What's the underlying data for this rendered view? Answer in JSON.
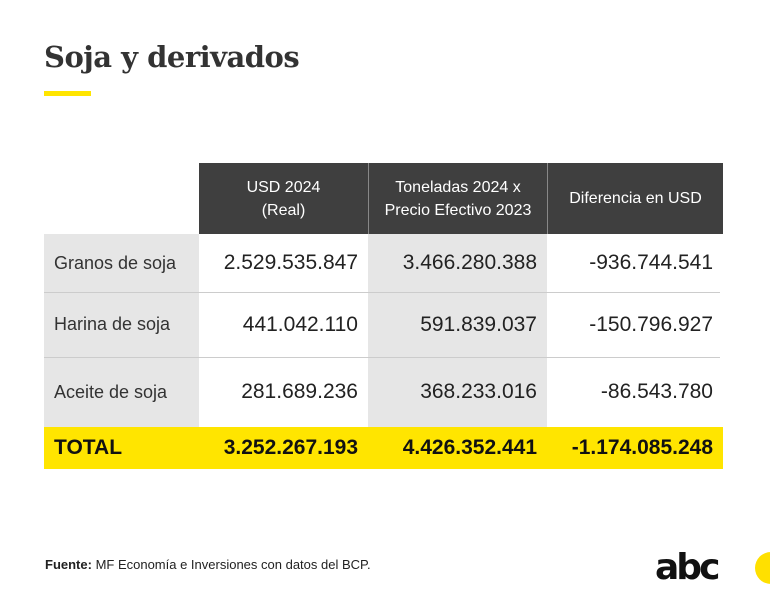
{
  "title": "Soja y derivados",
  "table": {
    "headers": [
      "USD 2024\n(Real)",
      "Toneladas 2024 x\nPrecio Efectivo 2023",
      "Diferencia en USD"
    ],
    "rows": [
      {
        "label": "Granos de soja",
        "values": [
          "2.529.535.847",
          "3.466.280.388",
          "-936.744.541"
        ]
      },
      {
        "label": "Harina de soja",
        "values": [
          "441.042.110",
          "591.839.037",
          "-150.796.927"
        ]
      },
      {
        "label": "Aceite de soja",
        "values": [
          "281.689.236",
          "368.233.016",
          "-86.543.780"
        ]
      }
    ],
    "total": {
      "label": "TOTAL",
      "values": [
        "3.252.267.193",
        "4.426.352.441",
        "-1.174.085.248"
      ]
    }
  },
  "source": {
    "label": "Fuente:",
    "text": " MF Economía e Inversiones con datos del BCP."
  },
  "logo": "abc",
  "colors": {
    "accent": "#ffe500",
    "header": "#3f3f3f",
    "gray": "#e6e6e6"
  }
}
